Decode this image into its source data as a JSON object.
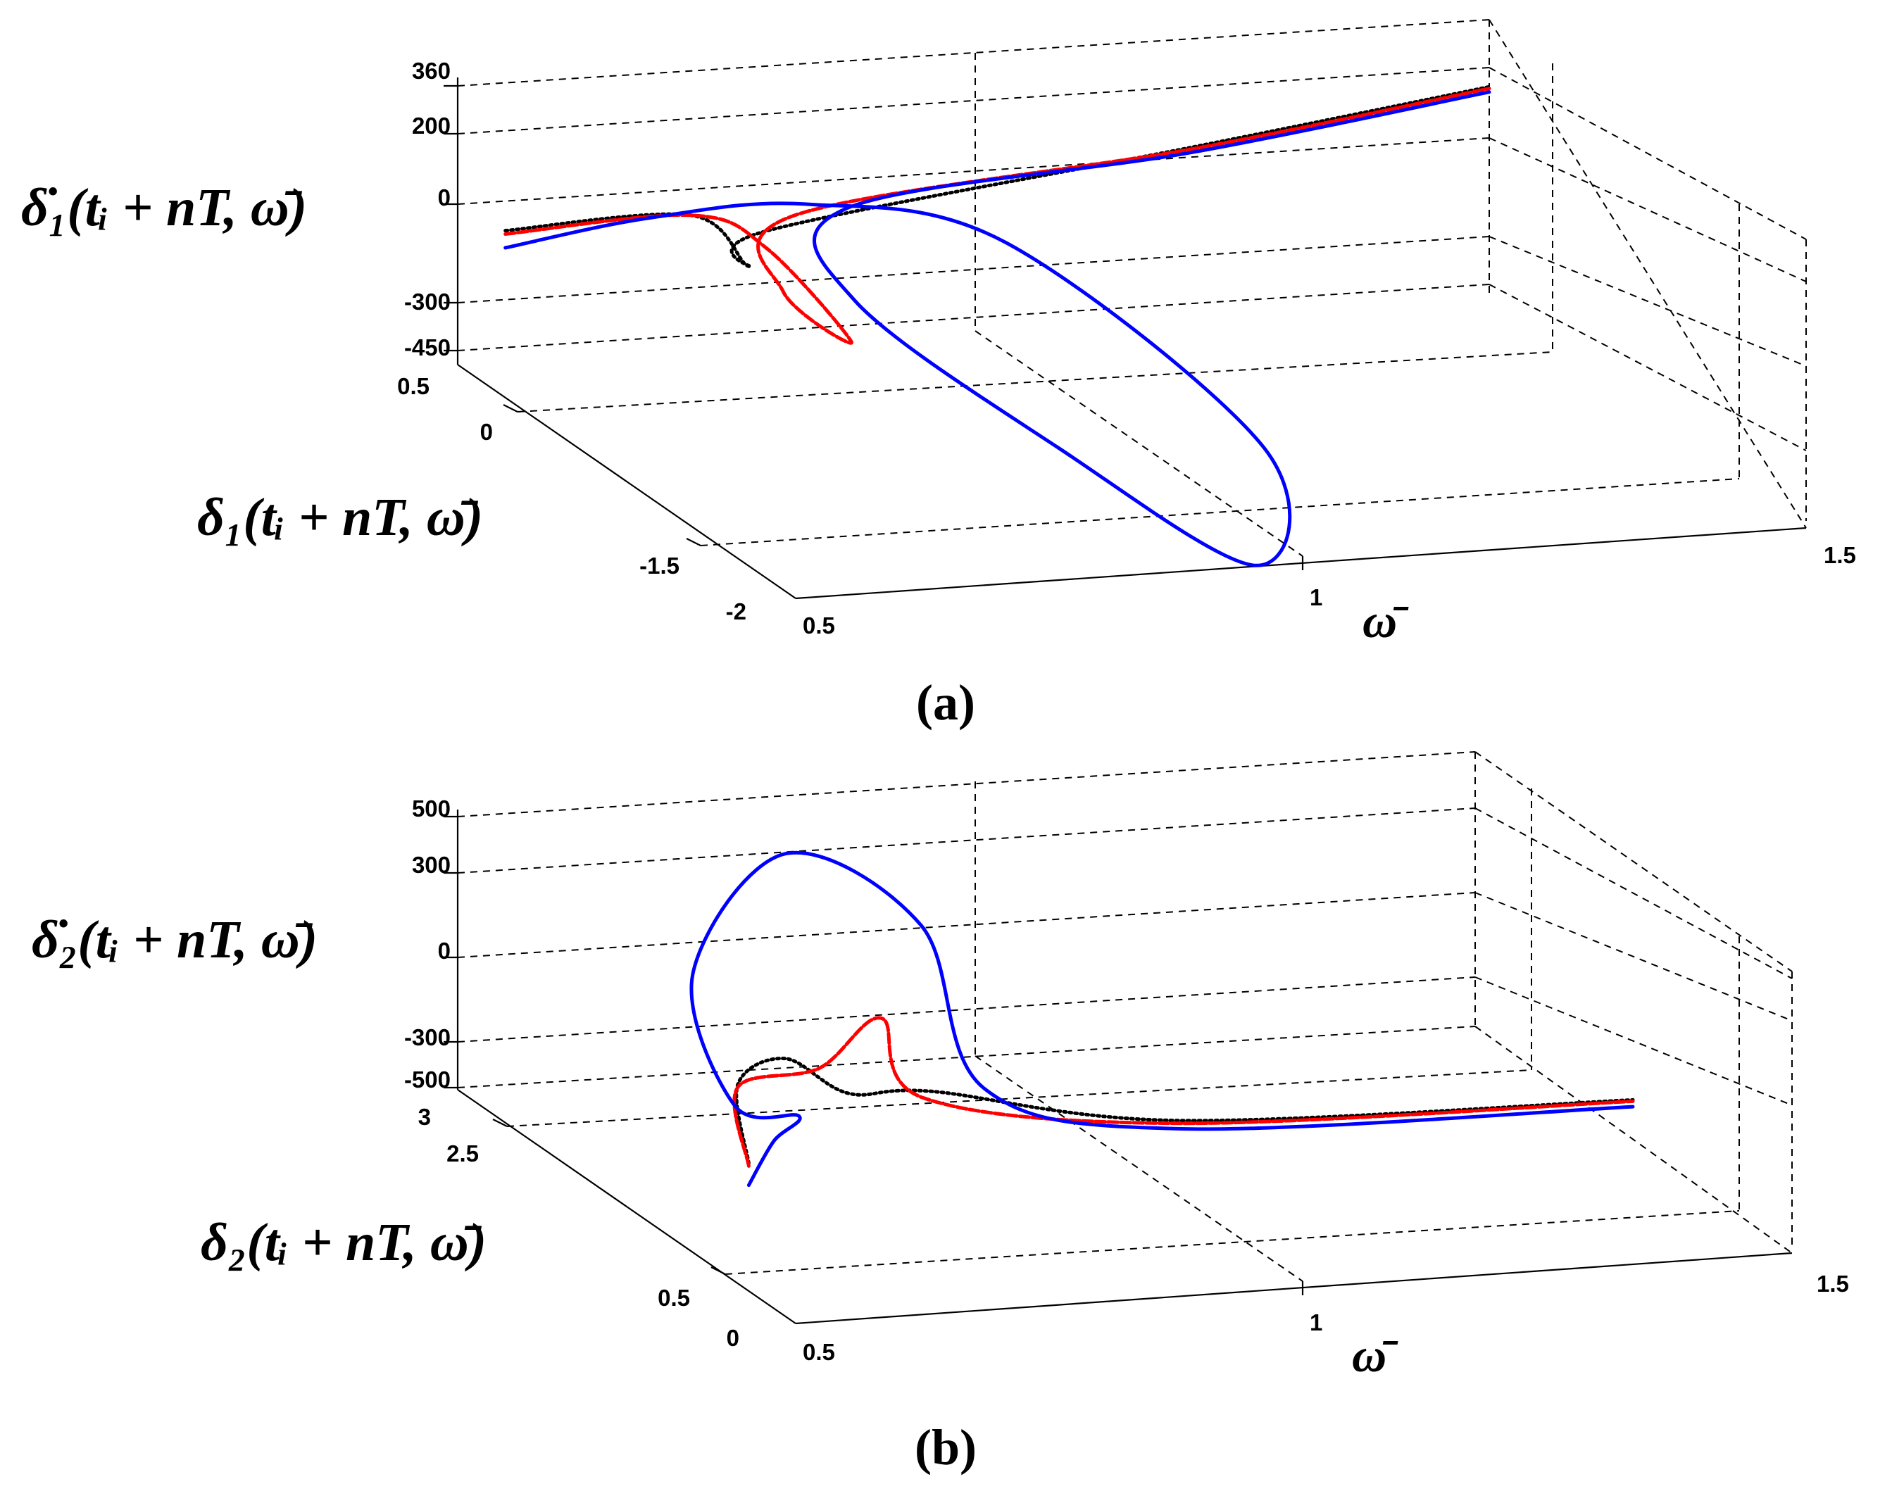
{
  "chart_data": [
    {
      "type": "line",
      "panel_label": "(a)",
      "xlabel": "ω̄",
      "ylabel": "δ₁(tᵢ + nT, ω̄)",
      "zlabel": "δ̇₁(tᵢ + nT, ω̄)",
      "xlim": [
        0.5,
        1.5
      ],
      "x_ticks": [
        "0.5",
        "1",
        "1.5"
      ],
      "y_ticks": [
        "0.5",
        "0",
        "-1.5",
        "-2"
      ],
      "z_ticks": [
        "360",
        "200",
        "0",
        "-300",
        "-450"
      ],
      "grid": true,
      "series": [
        {
          "color": "#0000ff",
          "style": "solid",
          "points": [
            [
              0.52,
              0.3,
              -60
            ],
            [
              0.66,
              0.3,
              0
            ],
            [
              0.8,
              0.2,
              40
            ],
            [
              0.9,
              -0.5,
              100
            ],
            [
              1.02,
              -1.5,
              -250
            ],
            [
              0.96,
              -1.9,
              -470
            ],
            [
              0.86,
              -1.2,
              -300
            ],
            [
              0.78,
              -0.3,
              -100
            ],
            [
              0.85,
              0.3,
              -10
            ],
            [
              1.2,
              0.4,
              60
            ],
            [
              1.5,
              0.5,
              150
            ]
          ]
        },
        {
          "color": "#ff0000",
          "style": "dashed",
          "points": [
            [
              0.52,
              0.3,
              -20
            ],
            [
              0.7,
              0.3,
              0
            ],
            [
              0.76,
              0.2,
              -80
            ],
            [
              0.79,
              -0.2,
              -250
            ],
            [
              0.75,
              0.0,
              -150
            ],
            [
              0.8,
              0.3,
              -20
            ],
            [
              1.2,
              0.4,
              70
            ],
            [
              1.5,
              0.5,
              160
            ]
          ]
        },
        {
          "color": "#000000",
          "style": "dotted",
          "points": [
            [
              0.52,
              0.3,
              -10
            ],
            [
              0.7,
              0.3,
              0
            ],
            [
              0.73,
              0.1,
              -100
            ],
            [
              0.76,
              0.2,
              -30
            ],
            [
              1.2,
              0.4,
              75
            ],
            [
              1.5,
              0.5,
              165
            ]
          ]
        }
      ]
    },
    {
      "type": "line",
      "panel_label": "(b)",
      "xlabel": "ω̄",
      "ylabel": "δ₂(tᵢ + nT, ω̄)",
      "zlabel": "δ̇₂(tᵢ + nT, ω̄)",
      "xlim": [
        0.5,
        1.5
      ],
      "x_ticks": [
        "0.5",
        "1",
        "1.5"
      ],
      "y_ticks": [
        "3",
        "2.5",
        "0.5",
        "0"
      ],
      "z_ticks": [
        "500",
        "300",
        "0",
        "-300",
        "-500"
      ],
      "grid": true,
      "series": [
        {
          "color": "#0000ff",
          "style": "solid",
          "points": [
            [
              0.62,
              1.5,
              -450
            ],
            [
              0.7,
              2.0,
              -450
            ],
            [
              0.78,
              2.5,
              -520
            ],
            [
              0.75,
              2.8,
              -560
            ],
            [
              0.72,
              2.9,
              -100
            ],
            [
              0.8,
              2.8,
              350
            ],
            [
              0.9,
              2.5,
              150
            ],
            [
              0.94,
              2.3,
              -400
            ],
            [
              1.1,
              2.0,
              -500
            ],
            [
              1.5,
              1.6,
              -400
            ]
          ]
        },
        {
          "color": "#ff0000",
          "style": "dashed",
          "points": [
            [
              0.62,
              1.5,
              -380
            ],
            [
              0.72,
              2.5,
              -400
            ],
            [
              0.8,
              2.5,
              -350
            ],
            [
              0.85,
              2.4,
              -150
            ],
            [
              0.88,
              2.3,
              -420
            ],
            [
              1.1,
              2.0,
              -480
            ],
            [
              1.5,
              1.6,
              -380
            ]
          ]
        },
        {
          "color": "#000000",
          "style": "dotted",
          "points": [
            [
              0.62,
              1.5,
              -370
            ],
            [
              0.72,
              2.5,
              -390
            ],
            [
              0.8,
              2.8,
              -400
            ],
            [
              0.84,
              2.6,
              -480
            ],
            [
              0.9,
              2.4,
              -430
            ],
            [
              1.1,
              2.0,
              -470
            ],
            [
              1.5,
              1.6,
              -375
            ]
          ]
        }
      ]
    }
  ]
}
